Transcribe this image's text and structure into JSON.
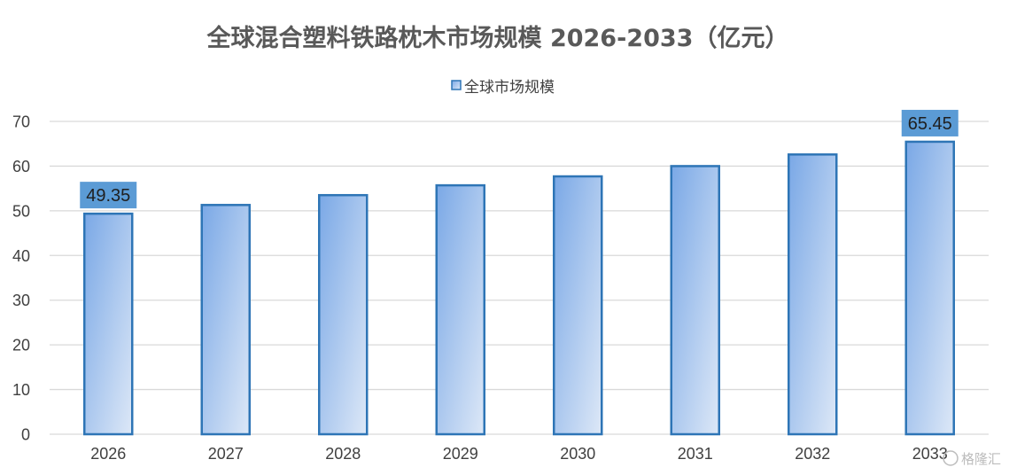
{
  "colors": {
    "bar_fill_top": "#7aa8e6",
    "bar_fill_bottom": "#dde8f7",
    "bar_stroke": "#2e75b6",
    "label_box": "#5b9bd5",
    "grid": "#d9d9d9"
  },
  "watermark": "格隆汇",
  "chart_data": {
    "type": "bar",
    "title": "全球混合塑料铁路枕木市场规模 2026-2033（亿元）",
    "categories": [
      "2026",
      "2027",
      "2028",
      "2029",
      "2030",
      "2031",
      "2032",
      "2033"
    ],
    "series": [
      {
        "name": "全球市场规模",
        "values": [
          49.35,
          51.3,
          53.5,
          55.7,
          57.7,
          60.0,
          62.6,
          65.45
        ]
      }
    ],
    "data_labels": [
      {
        "index": 0,
        "text": "49.35"
      },
      {
        "index": 7,
        "text": "65.45"
      }
    ],
    "ylim": [
      0,
      70
    ],
    "yticks": [
      0,
      10,
      20,
      30,
      40,
      50,
      60,
      70
    ],
    "grid": true,
    "legend": "top-center",
    "xlabel": "",
    "ylabel": ""
  }
}
